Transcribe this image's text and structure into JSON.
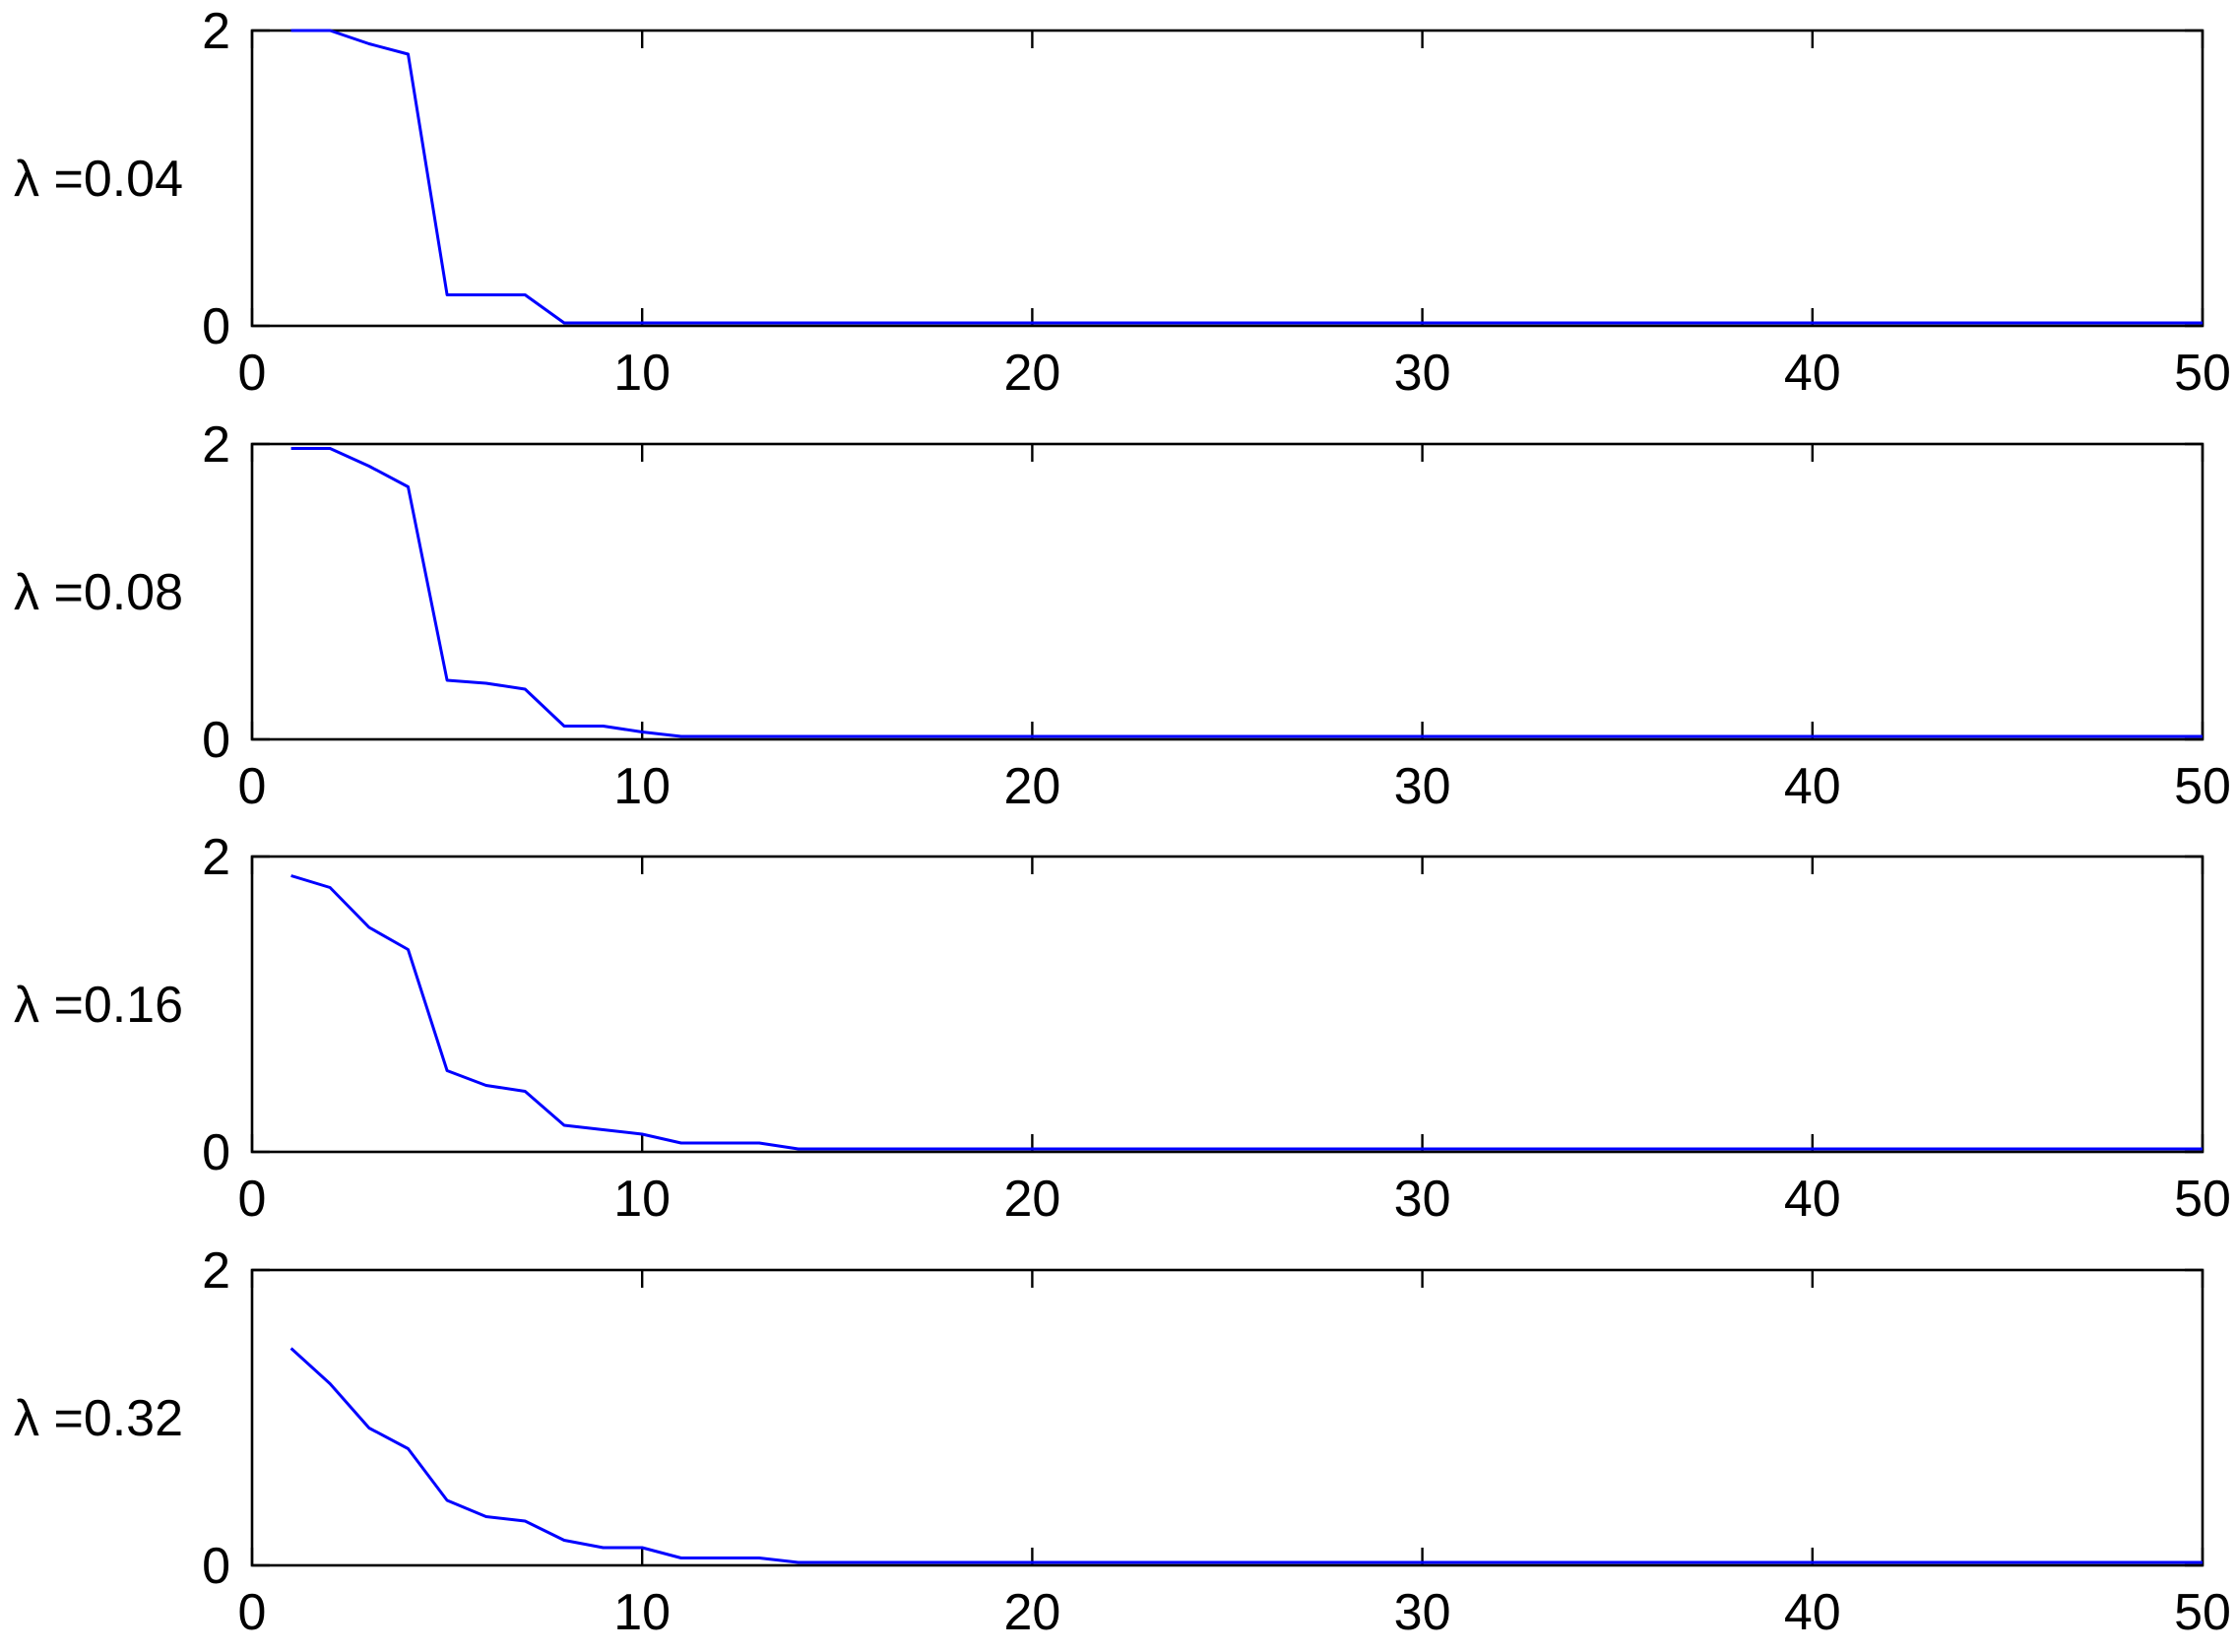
{
  "chart_data": [
    {
      "type": "line",
      "ylabel": "λ =0.04",
      "xlim": [
        0,
        50
      ],
      "ylim": [
        0,
        2
      ],
      "xticks": [
        0,
        10,
        20,
        30,
        40,
        50
      ],
      "yticks": [
        0,
        2
      ],
      "grid": false,
      "series": [
        {
          "color": "#0000ff",
          "x": [
            1,
            2,
            3,
            4,
            5,
            6,
            7,
            8,
            9,
            10,
            11,
            12,
            13,
            14,
            15,
            16,
            17,
            18,
            19,
            20,
            21,
            22,
            23,
            24,
            25,
            26,
            27,
            28,
            29,
            30,
            31,
            32,
            33,
            34,
            35,
            36,
            37,
            38,
            39,
            40,
            41,
            42,
            43,
            44,
            45,
            46,
            47,
            48,
            49,
            50
          ],
          "y": [
            2.0,
            2.0,
            1.91,
            1.84,
            0.21,
            0.21,
            0.21,
            0.02,
            0.02,
            0.02,
            0.02,
            0.02,
            0.02,
            0.02,
            0.02,
            0.02,
            0.02,
            0.02,
            0.02,
            0.02,
            0.02,
            0.02,
            0.02,
            0.02,
            0.02,
            0.02,
            0.02,
            0.02,
            0.02,
            0.02,
            0.02,
            0.02,
            0.02,
            0.02,
            0.02,
            0.02,
            0.02,
            0.02,
            0.02,
            0.02,
            0.02,
            0.02,
            0.02,
            0.02,
            0.02,
            0.02,
            0.02,
            0.02,
            0.02,
            0.02
          ]
        }
      ]
    },
    {
      "type": "line",
      "ylabel": "λ =0.08",
      "xlim": [
        0,
        50
      ],
      "ylim": [
        0,
        2
      ],
      "xticks": [
        0,
        10,
        20,
        30,
        40,
        50
      ],
      "yticks": [
        0,
        2
      ],
      "grid": false,
      "series": [
        {
          "color": "#0000ff",
          "x": [
            1,
            2,
            3,
            4,
            5,
            6,
            7,
            8,
            9,
            10,
            11,
            12,
            13,
            14,
            15,
            16,
            17,
            18,
            19,
            20,
            21,
            22,
            23,
            24,
            25,
            26,
            27,
            28,
            29,
            30,
            31,
            32,
            33,
            34,
            35,
            36,
            37,
            38,
            39,
            40,
            41,
            42,
            43,
            44,
            45,
            46,
            47,
            48,
            49,
            50
          ],
          "y": [
            1.97,
            1.97,
            1.85,
            1.71,
            0.4,
            0.38,
            0.34,
            0.09,
            0.09,
            0.05,
            0.02,
            0.02,
            0.02,
            0.02,
            0.02,
            0.02,
            0.02,
            0.02,
            0.02,
            0.02,
            0.02,
            0.02,
            0.02,
            0.02,
            0.02,
            0.02,
            0.02,
            0.02,
            0.02,
            0.02,
            0.02,
            0.02,
            0.02,
            0.02,
            0.02,
            0.02,
            0.02,
            0.02,
            0.02,
            0.02,
            0.02,
            0.02,
            0.02,
            0.02,
            0.02,
            0.02,
            0.02,
            0.02,
            0.02,
            0.02
          ]
        }
      ]
    },
    {
      "type": "line",
      "ylabel": "λ =0.16",
      "xlim": [
        0,
        50
      ],
      "ylim": [
        0,
        2
      ],
      "xticks": [
        0,
        10,
        20,
        30,
        40,
        50
      ],
      "yticks": [
        0,
        2
      ],
      "grid": false,
      "series": [
        {
          "color": "#0000ff",
          "x": [
            1,
            2,
            3,
            4,
            5,
            6,
            7,
            8,
            9,
            10,
            11,
            12,
            13,
            14,
            15,
            16,
            17,
            18,
            19,
            20,
            21,
            22,
            23,
            24,
            25,
            26,
            27,
            28,
            29,
            30,
            31,
            32,
            33,
            34,
            35,
            36,
            37,
            38,
            39,
            40,
            41,
            42,
            43,
            44,
            45,
            46,
            47,
            48,
            49,
            50
          ],
          "y": [
            1.87,
            1.79,
            1.52,
            1.37,
            0.55,
            0.45,
            0.41,
            0.18,
            0.15,
            0.12,
            0.06,
            0.06,
            0.06,
            0.02,
            0.02,
            0.02,
            0.02,
            0.02,
            0.02,
            0.02,
            0.02,
            0.02,
            0.02,
            0.02,
            0.02,
            0.02,
            0.02,
            0.02,
            0.02,
            0.02,
            0.02,
            0.02,
            0.02,
            0.02,
            0.02,
            0.02,
            0.02,
            0.02,
            0.02,
            0.02,
            0.02,
            0.02,
            0.02,
            0.02,
            0.02,
            0.02,
            0.02,
            0.02,
            0.02,
            0.02
          ]
        }
      ]
    },
    {
      "type": "line",
      "ylabel": "λ =0.32",
      "xlim": [
        0,
        50
      ],
      "ylim": [
        0,
        2
      ],
      "xticks": [
        0,
        10,
        20,
        30,
        40,
        50
      ],
      "yticks": [
        0,
        2
      ],
      "grid": false,
      "series": [
        {
          "color": "#0000ff",
          "x": [
            1,
            2,
            3,
            4,
            5,
            6,
            7,
            8,
            9,
            10,
            11,
            12,
            13,
            14,
            15,
            16,
            17,
            18,
            19,
            20,
            21,
            22,
            23,
            24,
            25,
            26,
            27,
            28,
            29,
            30,
            31,
            32,
            33,
            34,
            35,
            36,
            37,
            38,
            39,
            40,
            41,
            42,
            43,
            44,
            45,
            46,
            47,
            48,
            49,
            50
          ],
          "y": [
            1.47,
            1.23,
            0.93,
            0.79,
            0.44,
            0.33,
            0.3,
            0.17,
            0.12,
            0.12,
            0.05,
            0.05,
            0.05,
            0.02,
            0.02,
            0.02,
            0.02,
            0.02,
            0.02,
            0.02,
            0.02,
            0.02,
            0.02,
            0.02,
            0.02,
            0.02,
            0.02,
            0.02,
            0.02,
            0.02,
            0.02,
            0.02,
            0.02,
            0.02,
            0.02,
            0.02,
            0.02,
            0.02,
            0.02,
            0.02,
            0.02,
            0.02,
            0.02,
            0.02,
            0.02,
            0.02,
            0.02,
            0.02,
            0.02,
            0.02
          ]
        }
      ]
    }
  ]
}
